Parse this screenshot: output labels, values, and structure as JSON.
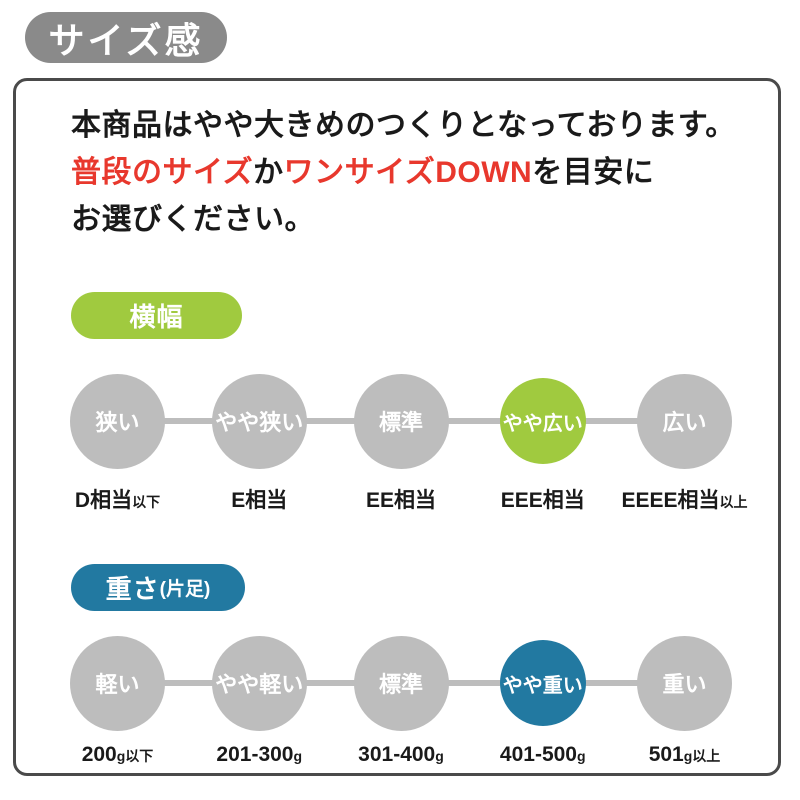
{
  "title_badge": "サイズ感",
  "intro": {
    "line1": "本商品はやや大きめのつくりとなっております。",
    "line2_red1": "普段のサイズ",
    "line2_black1": "か",
    "line2_red2": "ワンサイズDOWN",
    "line2_black2": "を目安に",
    "line3": "お選びください。"
  },
  "colors": {
    "badge_gray": "#8a8a8a",
    "circle_gray": "#bdbdbd",
    "green": "#a0ca3f",
    "blue": "#2279a1",
    "red_text": "#e8382d",
    "panel_border": "#4a4a4a"
  },
  "scales": [
    {
      "name": "width",
      "badge_label": "横幅",
      "badge_sub": "",
      "accent": "#a0ca3f",
      "steps": [
        {
          "circle": "狭い",
          "label_main": "D相当",
          "label_small": "以下",
          "active": false
        },
        {
          "circle": "やや狭い",
          "label_main": "E相当",
          "label_small": "",
          "active": false
        },
        {
          "circle": "標準",
          "label_main": "EE相当",
          "label_small": "",
          "active": false
        },
        {
          "circle": "やや広い",
          "label_main": "EEE相当",
          "label_small": "",
          "active": true
        },
        {
          "circle": "広い",
          "label_main": "EEEE相当",
          "label_small": "以上",
          "active": false
        }
      ]
    },
    {
      "name": "weight",
      "badge_label": "重さ",
      "badge_sub": "(片足)",
      "accent": "#2279a1",
      "steps": [
        {
          "circle": "軽い",
          "label_main": "200",
          "label_small": "g以下",
          "active": false
        },
        {
          "circle": "やや軽い",
          "label_main": "201-300",
          "label_small": "g",
          "active": false
        },
        {
          "circle": "標準",
          "label_main": "301-400",
          "label_small": "g",
          "active": false
        },
        {
          "circle": "やや重い",
          "label_main": "401-500",
          "label_small": "g",
          "active": true
        },
        {
          "circle": "重い",
          "label_main": "501",
          "label_small": "g以上",
          "active": false
        }
      ]
    }
  ]
}
